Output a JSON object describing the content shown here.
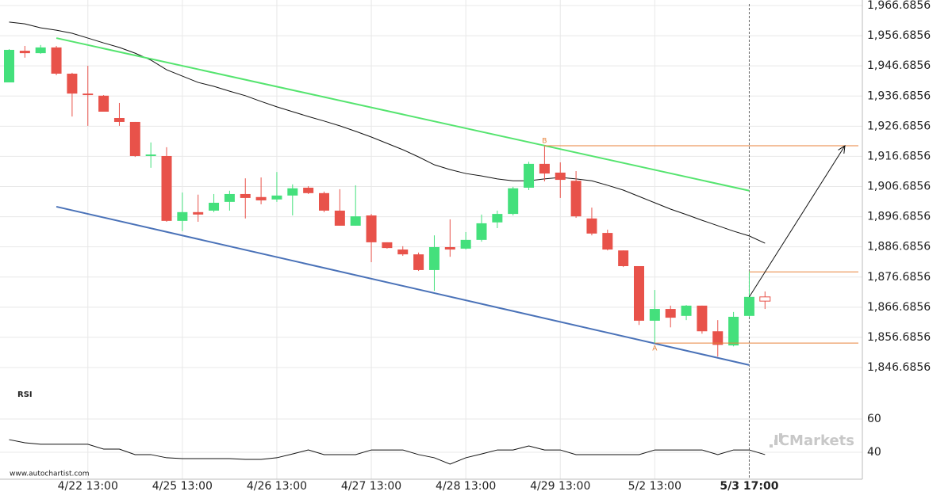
{
  "chart_data": [
    {
      "type": "candlestick",
      "categories": [
        null,
        null,
        null,
        null,
        null,
        "4/22 13:00",
        null,
        null,
        null,
        null,
        null,
        "4/25 13:00",
        null,
        null,
        null,
        null,
        null,
        "4/26 13:00",
        null,
        null,
        null,
        null,
        null,
        "4/27 13:00",
        null,
        null,
        null,
        null,
        null,
        "4/28 13:00",
        null,
        null,
        null,
        null,
        null,
        "4/29 13:00",
        null,
        null,
        null,
        null,
        null,
        "5/2 13:00",
        null,
        null,
        null,
        null,
        null,
        "5/3 17:00",
        null
      ],
      "open": [
        1941.2,
        1951.7,
        1950.9,
        1952.8,
        1944.1,
        1937.5,
        1936.8,
        1929.4,
        1928.1,
        1916.8,
        1916.8,
        1895.3,
        1898.2,
        1898.7,
        1901.6,
        1904.2,
        1903.2,
        1902.4,
        1903.7,
        1906.3,
        1904.5,
        1898.7,
        1893.7,
        1897.1,
        1888.2,
        1885.8,
        1884.2,
        1879.0,
        1886.6,
        1886.1,
        1889.0,
        1894.8,
        1897.6,
        1906.3,
        1914.2,
        1911.3,
        1908.6,
        1896.1,
        1891.3,
        1885.5,
        1880.3,
        1862.2,
        1866.1,
        1863.8,
        1867.2,
        1858.7,
        1854.0,
        1863.8,
        1870.1
      ],
      "high": [
        1952.2,
        1953.3,
        1953.6,
        1953.3,
        1944.4,
        1946.7,
        1937.0,
        1934.4,
        1928.1,
        1921.3,
        1919.7,
        1904.7,
        1904.0,
        1904.2,
        1905.3,
        1909.4,
        1909.7,
        1911.5,
        1907.4,
        1906.8,
        1905.0,
        1905.8,
        1907.1,
        1897.6,
        1888.2,
        1886.9,
        1884.8,
        1890.5,
        1895.8,
        1891.6,
        1897.4,
        1898.7,
        1906.6,
        1914.9,
        1920.0,
        1914.7,
        1911.8,
        1899.7,
        1892.4,
        1885.5,
        1880.3,
        1872.4,
        1867.2,
        1867.4,
        1867.2,
        1862.4,
        1865.1,
        1878.7,
        1871.9
      ],
      "low": [
        1941.2,
        1949.4,
        1950.7,
        1943.6,
        1929.9,
        1926.8,
        1931.5,
        1926.8,
        1916.5,
        1912.9,
        1895.0,
        1891.9,
        1895.0,
        1898.2,
        1898.7,
        1896.1,
        1900.8,
        1901.6,
        1897.1,
        1904.2,
        1898.2,
        1893.7,
        1893.7,
        1881.6,
        1886.1,
        1883.7,
        1878.7,
        1872.1,
        1883.4,
        1885.8,
        1888.4,
        1892.9,
        1897.1,
        1905.5,
        1908.4,
        1902.9,
        1896.3,
        1890.5,
        1885.5,
        1880.0,
        1860.8,
        1854.8,
        1860.0,
        1862.4,
        1857.9,
        1850.3,
        1853.7,
        1863.5,
        1866.1
      ],
      "close": [
        1952.0,
        1950.9,
        1952.8,
        1944.1,
        1937.5,
        1937.0,
        1931.5,
        1928.1,
        1916.8,
        1917.3,
        1895.3,
        1898.2,
        1897.4,
        1901.3,
        1904.2,
        1902.9,
        1902.1,
        1903.7,
        1906.1,
        1904.5,
        1898.7,
        1893.7,
        1896.8,
        1888.2,
        1886.3,
        1884.2,
        1879.0,
        1886.6,
        1885.8,
        1889.0,
        1894.5,
        1897.6,
        1906.1,
        1914.2,
        1911.0,
        1908.9,
        1896.8,
        1891.1,
        1885.8,
        1880.3,
        1862.2,
        1866.1,
        1863.2,
        1867.2,
        1858.7,
        1854.2,
        1863.5,
        1870.1,
        1868.7
      ],
      "colors": {
        "up": "#44e07c",
        "down": "#e8524a"
      },
      "ylim": [
        1846.6856,
        1966.6856
      ],
      "yticks": [
        {
          "value": 1966.6856,
          "label": "1,966.6856"
        },
        {
          "value": 1956.6856,
          "label": "1,956.6856"
        },
        {
          "value": 1946.6856,
          "label": "1,946.6856"
        },
        {
          "value": 1936.6856,
          "label": "1,936.6856"
        },
        {
          "value": 1926.6856,
          "label": "1,926.6856"
        },
        {
          "value": 1916.6856,
          "label": "1,916.6856"
        },
        {
          "value": 1906.6856,
          "label": "1,906.6856"
        },
        {
          "value": 1896.6856,
          "label": "1,896.6856"
        },
        {
          "value": 1886.6856,
          "label": "1,886.6856"
        },
        {
          "value": 1876.6856,
          "label": "1,876.6856"
        },
        {
          "value": 1866.6856,
          "label": "1,866.6856"
        },
        {
          "value": 1856.6856,
          "label": "1,856.6856"
        },
        {
          "value": 1846.6856,
          "label": "1,846.6856"
        }
      ],
      "grid": true,
      "moving_average": {
        "color": "#111111",
        "values": [
          1961.2,
          1960.6,
          1959.3,
          1958.5,
          1957.5,
          1955.9,
          1954.3,
          1952.8,
          1950.9,
          1948.6,
          1945.4,
          1943.3,
          1941.2,
          1939.9,
          1938.3,
          1936.8,
          1934.9,
          1933.1,
          1931.5,
          1929.9,
          1928.4,
          1926.8,
          1925.0,
          1923.1,
          1921.0,
          1918.9,
          1916.5,
          1913.9,
          1912.3,
          1911.0,
          1910.2,
          1909.2,
          1908.6,
          1908.6,
          1909.2,
          1909.7,
          1909.2,
          1908.6,
          1907.1,
          1905.5,
          1903.4,
          1901.3,
          1899.2,
          1897.4,
          1895.5,
          1893.7,
          1891.9,
          1890.3,
          1887.9
        ]
      },
      "trendlines": [
        {
          "color": "#55e46f",
          "x": [
            3,
            47
          ],
          "values": [
            1955.9,
            1905.3
          ]
        },
        {
          "color": "#4a72b8",
          "x": [
            3,
            47
          ],
          "values": [
            1900.0,
            1847.5
          ]
        }
      ],
      "levels": [
        {
          "label": "B",
          "value": 1920.2,
          "start": 34
        },
        {
          "label": "A",
          "value": 1854.8,
          "start": 41
        },
        {
          "value": 1878.4,
          "start": 47
        }
      ],
      "level_color": "#e8823a",
      "watermark": "www.autochartist.com",
      "logo": "ICMarkets"
    },
    {
      "type": "line",
      "title": "RSI",
      "color": "#111111",
      "values": [
        47.6,
        45.7,
        44.8,
        44.8,
        44.8,
        44.8,
        41.9,
        41.9,
        38.6,
        38.6,
        36.7,
        36.2,
        36.2,
        36.2,
        36.2,
        35.7,
        35.7,
        36.7,
        39.0,
        41.4,
        38.6,
        38.6,
        38.6,
        41.4,
        41.4,
        41.4,
        38.6,
        36.7,
        32.9,
        36.7,
        39.0,
        41.4,
        41.4,
        43.8,
        41.4,
        41.4,
        38.6,
        38.6,
        38.6,
        38.6,
        38.6,
        41.4,
        41.4,
        41.4,
        41.4,
        38.6,
        41.4,
        41.4,
        38.6
      ],
      "ylim": [
        23.8,
        78.6
      ],
      "yticks": [
        40,
        60
      ],
      "grid": true
    }
  ]
}
